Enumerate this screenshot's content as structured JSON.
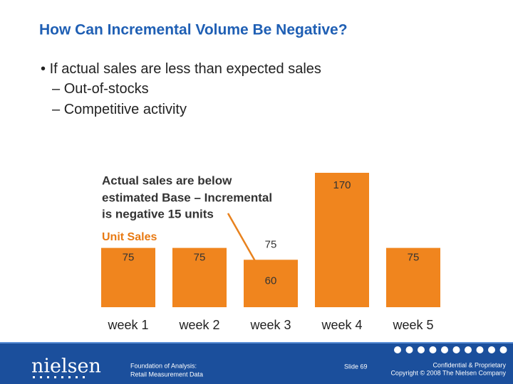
{
  "title": "How Can Incremental Volume Be Negative?",
  "bullets": [
    {
      "text": "If actual sales are less than expected sales",
      "subitems": [
        "Out-of-stocks",
        "Competitive activity"
      ]
    }
  ],
  "chart_data": {
    "type": "bar",
    "y_label": "Unit Sales",
    "annotation": [
      "Actual sales are below",
      "estimated Base – Incremental",
      "is negative 15 units"
    ],
    "categories": [
      "week 1",
      "week 2",
      "week 3",
      "week 4",
      "week 5"
    ],
    "values": [
      75,
      75,
      60,
      170,
      75
    ],
    "expected": [
      null,
      null,
      75,
      null,
      null
    ],
    "color": "#f0851e"
  },
  "footer": {
    "logo": "nielsen",
    "subtitle": [
      "Foundation of Analysis:",
      "Retail Measurement Data"
    ],
    "slide": "Slide 69",
    "confidential": "Confidential & Proprietary",
    "copyright": "Copyright © 2008 The Nielsen Company"
  }
}
